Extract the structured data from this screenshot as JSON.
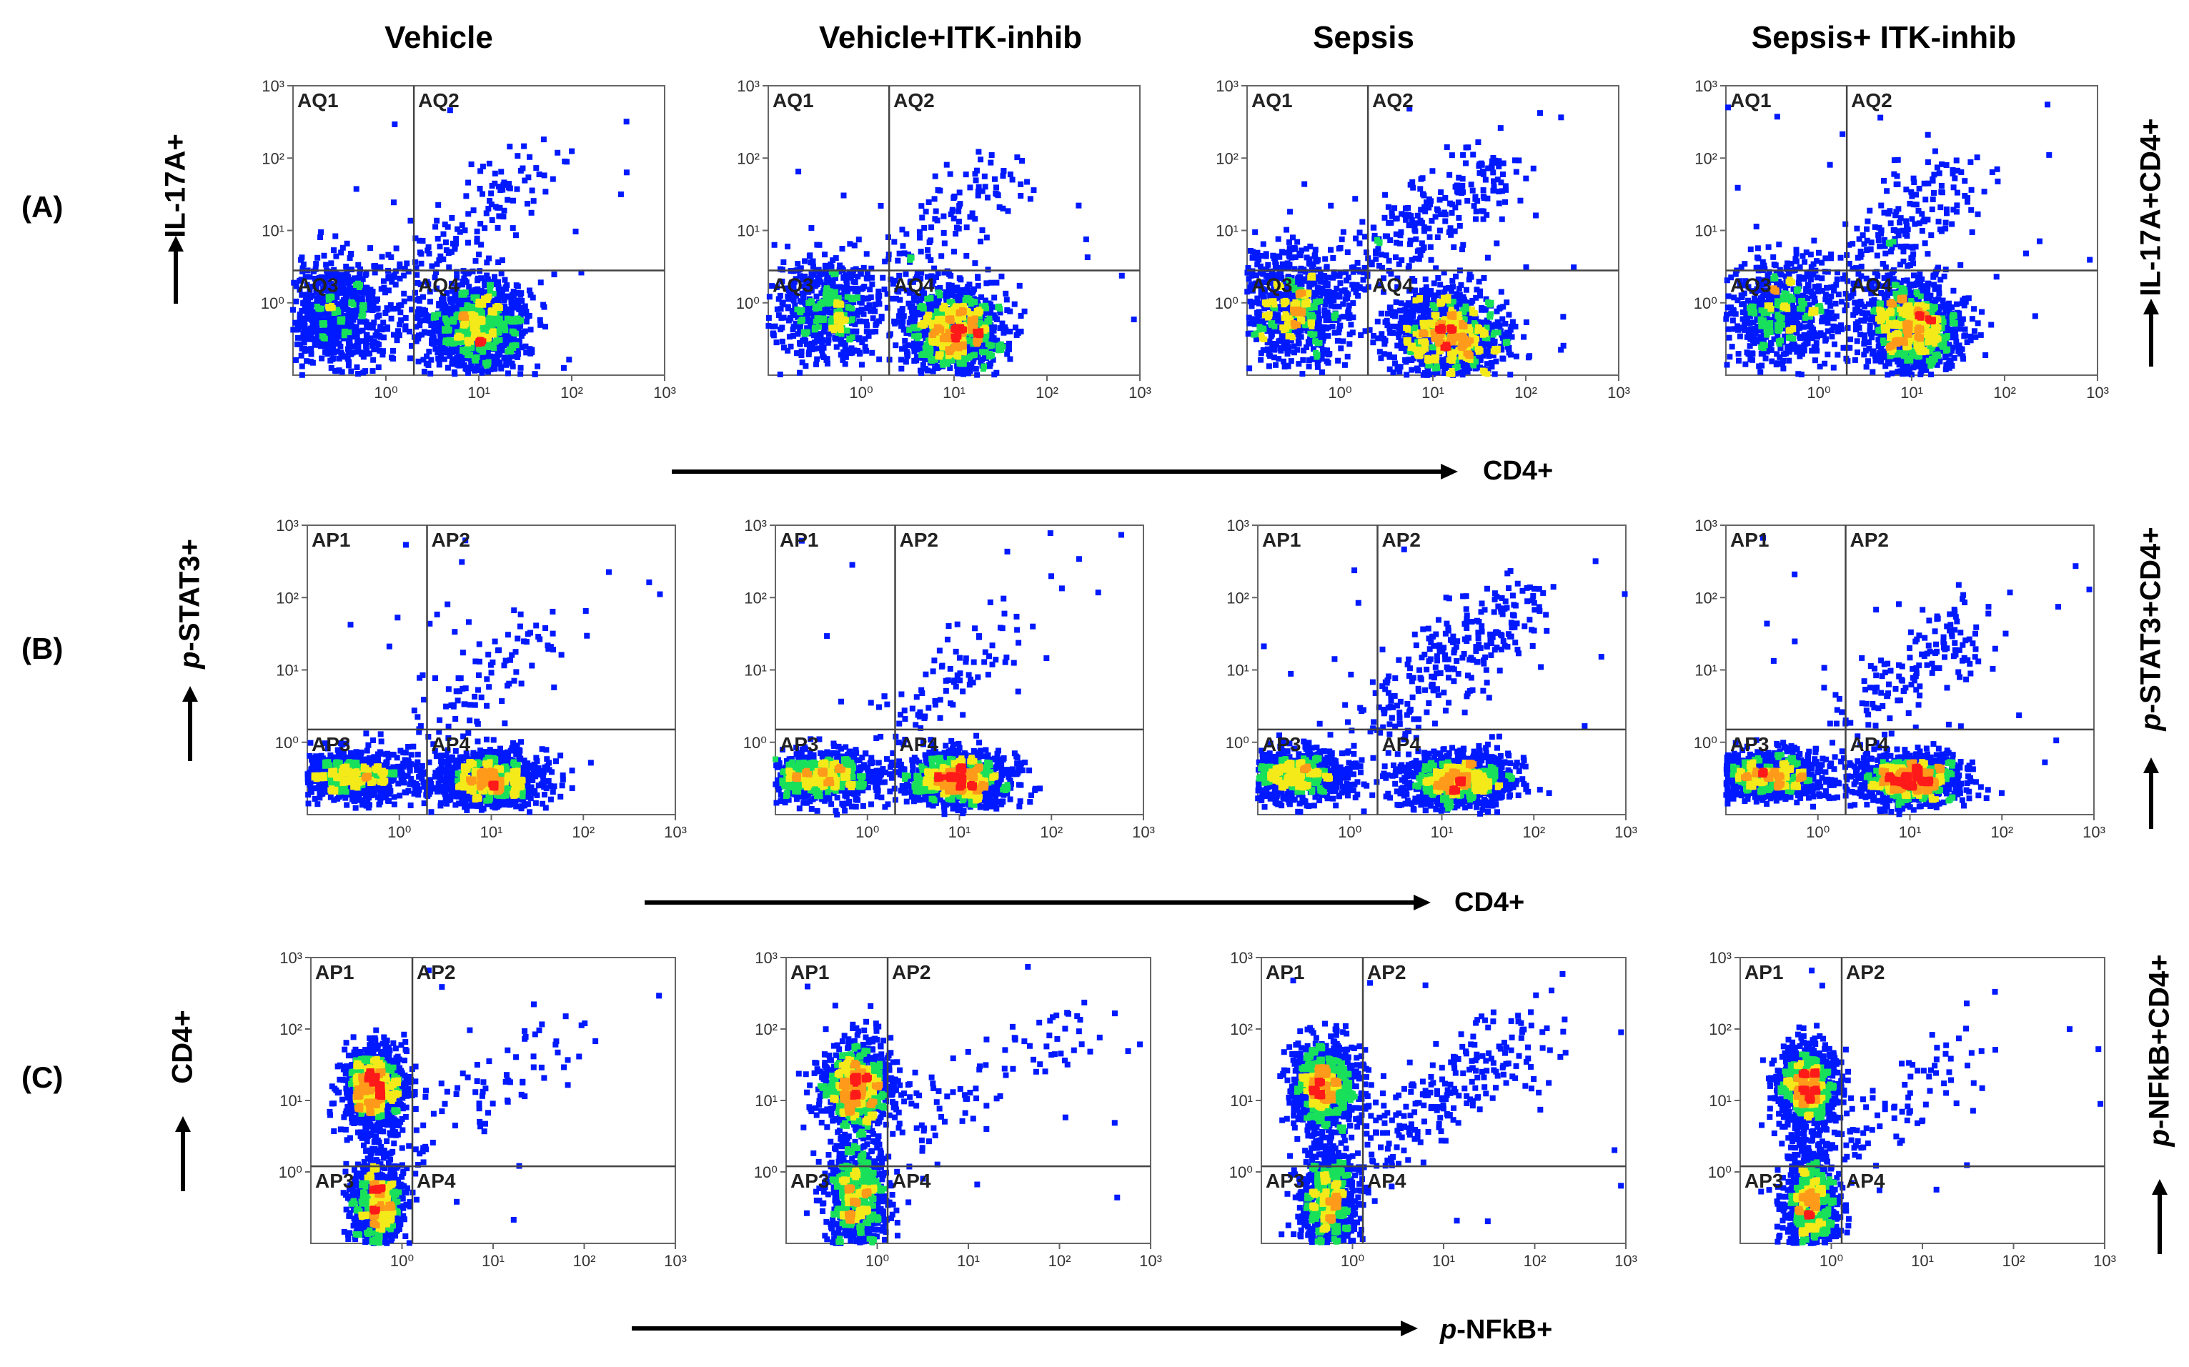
{
  "column_titles": [
    "Vehicle",
    "Vehicle+ITK-inhib",
    "Sepsis",
    "Sepsis+ ITK-inhib"
  ],
  "rows": [
    {
      "label": "(A)",
      "y_label": "IL-17A+",
      "y_label_prefix": "",
      "right_label": "IL-17A+CD4+",
      "right_label_prefix": "",
      "x_label": "CD4+",
      "x_label_prefix": "",
      "quadrants": [
        "AQ1",
        "AQ2",
        "AQ3",
        "AQ4"
      ]
    },
    {
      "label": "(B)",
      "y_label": "-STAT3+",
      "y_label_prefix": "p",
      "right_label": "-STAT3+CD4+",
      "right_label_prefix": "p",
      "x_label": "CD4+",
      "x_label_prefix": "",
      "quadrants": [
        "AP1",
        "AP2",
        "AP3",
        "AP4"
      ]
    },
    {
      "label": "(C)",
      "y_label": "CD4+",
      "y_label_prefix": "",
      "right_label": "-NFkB+CD4+",
      "right_label_prefix": "p",
      "x_label": "-NFkB+",
      "x_label_prefix": "p",
      "quadrants": [
        "AP1",
        "AP2",
        "AP3",
        "AP4"
      ]
    }
  ],
  "chart_data": {
    "type": "scatter",
    "description_kind": "flow cytometry density dot plots, 3 rows x 4 conditions",
    "x_scale": "log",
    "y_scale": "log",
    "xlim": [
      0.1,
      1000
    ],
    "ylim": [
      0.1,
      1000
    ],
    "x_tick_labels": [
      "10⁰",
      "10¹",
      "10²",
      "10³"
    ],
    "y_tick_labels": [
      "10⁰",
      "10¹",
      "10²",
      "10³"
    ],
    "x_tick_values": [
      1,
      10,
      100,
      1000
    ],
    "y_tick_values": [
      1,
      10,
      100,
      1000
    ],
    "colors": {
      "sparse": "#0019ff",
      "mid": "#19e05a",
      "dense_yellow": "#f4ea1a",
      "dense_orange": "#ff9a1a",
      "core": "#ff1a1a",
      "gate_line": "#444444",
      "frame": "#666666"
    },
    "panels": [
      {
        "row": 0,
        "col": 0,
        "gate_x": 2.0,
        "gate_y": 2.8,
        "clusters": [
          {
            "x": 0.3,
            "y": 0.7,
            "sx": 0.32,
            "sy": 0.38,
            "n": 700
          },
          {
            "x": 10,
            "y": 0.45,
            "sx": 0.27,
            "sy": 0.32,
            "n": 1100
          }
        ],
        "trail": {
          "x0": 1.5,
          "y0": 1.5,
          "x1": 40,
          "y1": 60,
          "n": 140
        }
      },
      {
        "row": 0,
        "col": 1,
        "gate_x": 2.0,
        "gate_y": 2.8,
        "clusters": [
          {
            "x": 0.4,
            "y": 0.8,
            "sx": 0.3,
            "sy": 0.36,
            "n": 600
          },
          {
            "x": 10,
            "y": 0.4,
            "sx": 0.26,
            "sy": 0.3,
            "n": 1100
          }
        ],
        "trail": {
          "x0": 1.5,
          "y0": 1.5,
          "x1": 40,
          "y1": 60,
          "n": 130
        }
      },
      {
        "row": 0,
        "col": 2,
        "gate_x": 2.0,
        "gate_y": 2.8,
        "clusters": [
          {
            "x": 0.3,
            "y": 0.8,
            "sx": 0.3,
            "sy": 0.42,
            "n": 750
          },
          {
            "x": 15,
            "y": 0.35,
            "sx": 0.3,
            "sy": 0.33,
            "n": 1100
          }
        ],
        "trail": {
          "x0": 1.0,
          "y0": 2.0,
          "x1": 60,
          "y1": 80,
          "n": 260
        }
      },
      {
        "row": 0,
        "col": 3,
        "gate_x": 2.0,
        "gate_y": 2.8,
        "clusters": [
          {
            "x": 0.4,
            "y": 0.7,
            "sx": 0.3,
            "sy": 0.38,
            "n": 650
          },
          {
            "x": 10,
            "y": 0.45,
            "sx": 0.27,
            "sy": 0.33,
            "n": 1100
          }
        ],
        "trail": {
          "x0": 1.5,
          "y0": 1.5,
          "x1": 40,
          "y1": 80,
          "n": 200
        }
      },
      {
        "row": 1,
        "col": 0,
        "gate_x": 2.0,
        "gate_y": 1.5,
        "clusters": [
          {
            "x": 0.3,
            "y": 0.35,
            "sx": 0.33,
            "sy": 0.18,
            "n": 800
          },
          {
            "x": 10,
            "y": 0.3,
            "sx": 0.28,
            "sy": 0.18,
            "n": 1100
          }
        ],
        "trail": {
          "x0": 2,
          "y0": 1.5,
          "x1": 40,
          "y1": 50,
          "n": 90
        }
      },
      {
        "row": 1,
        "col": 1,
        "gate_x": 2.0,
        "gate_y": 1.5,
        "clusters": [
          {
            "x": 0.3,
            "y": 0.35,
            "sx": 0.33,
            "sy": 0.18,
            "n": 800
          },
          {
            "x": 10,
            "y": 0.3,
            "sx": 0.28,
            "sy": 0.18,
            "n": 1100
          }
        ],
        "trail": {
          "x0": 2,
          "y0": 1.5,
          "x1": 40,
          "y1": 40,
          "n": 90
        }
      },
      {
        "row": 1,
        "col": 2,
        "gate_x": 2.0,
        "gate_y": 1.5,
        "clusters": [
          {
            "x": 0.25,
            "y": 0.35,
            "sx": 0.3,
            "sy": 0.18,
            "n": 800
          },
          {
            "x": 15,
            "y": 0.3,
            "sx": 0.3,
            "sy": 0.18,
            "n": 1100
          }
        ],
        "trail": {
          "x0": 1.5,
          "y0": 1.5,
          "x1": 100,
          "y1": 100,
          "n": 260
        }
      },
      {
        "row": 1,
        "col": 3,
        "gate_x": 2.0,
        "gate_y": 1.5,
        "clusters": [
          {
            "x": 0.3,
            "y": 0.35,
            "sx": 0.33,
            "sy": 0.18,
            "n": 800
          },
          {
            "x": 10,
            "y": 0.3,
            "sx": 0.28,
            "sy": 0.18,
            "n": 1100
          }
        ],
        "trail": {
          "x0": 2,
          "y0": 1.5,
          "x1": 60,
          "y1": 60,
          "n": 150
        }
      },
      {
        "row": 2,
        "col": 0,
        "gate_x": 1.3,
        "gate_y": 1.2,
        "clusters": [
          {
            "x": 0.5,
            "y": 15,
            "sx": 0.16,
            "sy": 0.3,
            "n": 1000
          },
          {
            "x": 0.55,
            "y": 0.35,
            "sx": 0.14,
            "sy": 0.35,
            "n": 800
          }
        ],
        "trail": {
          "x0": 1.3,
          "y0": 2,
          "x1": 60,
          "y1": 100,
          "n": 70
        }
      },
      {
        "row": 2,
        "col": 1,
        "gate_x": 1.3,
        "gate_y": 1.2,
        "clusters": [
          {
            "x": 0.6,
            "y": 15,
            "sx": 0.18,
            "sy": 0.3,
            "n": 1000
          },
          {
            "x": 0.6,
            "y": 0.4,
            "sx": 0.17,
            "sy": 0.38,
            "n": 800
          }
        ],
        "trail": {
          "x0": 1.3,
          "y0": 2,
          "x1": 200,
          "y1": 200,
          "n": 90
        }
      },
      {
        "row": 2,
        "col": 2,
        "gate_x": 1.3,
        "gate_y": 1.2,
        "clusters": [
          {
            "x": 0.5,
            "y": 15,
            "sx": 0.18,
            "sy": 0.3,
            "n": 1000
          },
          {
            "x": 0.55,
            "y": 0.4,
            "sx": 0.16,
            "sy": 0.4,
            "n": 900
          }
        ],
        "trail": {
          "x0": 1.3,
          "y0": 2,
          "x1": 100,
          "y1": 100,
          "n": 230
        }
      },
      {
        "row": 2,
        "col": 3,
        "gate_x": 1.3,
        "gate_y": 1.2,
        "clusters": [
          {
            "x": 0.55,
            "y": 15,
            "sx": 0.16,
            "sy": 0.3,
            "n": 1000
          },
          {
            "x": 0.6,
            "y": 0.35,
            "sx": 0.15,
            "sy": 0.38,
            "n": 900
          }
        ],
        "trail": {
          "x0": 1.3,
          "y0": 2,
          "x1": 30,
          "y1": 40,
          "n": 80
        }
      }
    ]
  }
}
